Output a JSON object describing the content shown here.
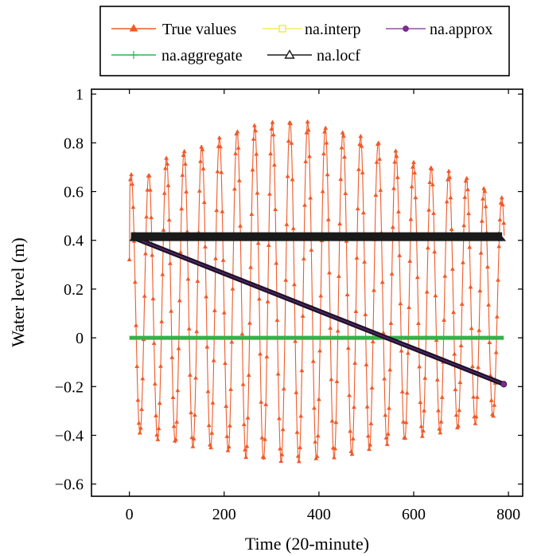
{
  "chart_data": {
    "type": "line",
    "title": "",
    "xlabel": "Time (20-minute)",
    "ylabel": "Water level (m)",
    "xlim": [
      -80,
      830
    ],
    "ylim": [
      -0.65,
      1.02
    ],
    "xticks": [
      0,
      200,
      400,
      600,
      800
    ],
    "xtick_labels": [
      "0",
      "200",
      "400",
      "600",
      "800"
    ],
    "yticks": [
      -0.6,
      -0.4,
      -0.2,
      0,
      0.2,
      0.4,
      0.6,
      0.8,
      1
    ],
    "ytick_labels": [
      "−0.6",
      "−0.4",
      "−0.2",
      "0",
      "0.2",
      "0.4",
      "0.6",
      "0.8",
      "1"
    ],
    "grid": false,
    "legend_position": "top",
    "true_values": {
      "n_points": 792,
      "period": 37.25,
      "phase_min_x": 22.3,
      "start_x": 0,
      "start_value": 0.32,
      "peaks": [
        [
          40,
          0.67
        ],
        [
          80,
          0.74
        ],
        [
          120,
          0.77
        ],
        [
          160,
          0.79
        ],
        [
          200,
          0.83
        ],
        [
          240,
          0.86
        ],
        [
          280,
          0.88
        ],
        [
          330,
          0.89
        ],
        [
          370,
          0.89
        ],
        [
          400,
          0.87
        ],
        [
          440,
          0.85
        ],
        [
          480,
          0.83
        ],
        [
          520,
          0.81
        ],
        [
          560,
          0.77
        ],
        [
          600,
          0.72
        ],
        [
          640,
          0.7
        ],
        [
          680,
          0.68
        ],
        [
          720,
          0.65
        ],
        [
          760,
          0.6
        ],
        [
          790,
          0.57
        ]
      ],
      "troughs": [
        [
          20,
          -0.39
        ],
        [
          60,
          -0.42
        ],
        [
          100,
          -0.43
        ],
        [
          140,
          -0.45
        ],
        [
          200,
          -0.46
        ],
        [
          240,
          -0.49
        ],
        [
          280,
          -0.5
        ],
        [
          330,
          -0.51
        ],
        [
          370,
          -0.51
        ],
        [
          400,
          -0.5
        ],
        [
          440,
          -0.49
        ],
        [
          480,
          -0.48
        ],
        [
          520,
          -0.45
        ],
        [
          560,
          -0.43
        ],
        [
          600,
          -0.41
        ],
        [
          640,
          -0.4
        ],
        [
          680,
          -0.38
        ],
        [
          720,
          -0.36
        ],
        [
          760,
          -0.33
        ],
        [
          790,
          -0.31
        ]
      ]
    },
    "series": [
      {
        "name": "True values",
        "color": "#f05a28",
        "marker": "triangle"
      },
      {
        "name": "na.interp",
        "color": "#f5e642",
        "marker": "square",
        "x": [
          10,
          790
        ],
        "values": [
          0.41,
          -0.19
        ]
      },
      {
        "name": "na.approx",
        "color": "#7b2d8e",
        "marker": "circle",
        "x": [
          10,
          790
        ],
        "values": [
          0.41,
          -0.19
        ]
      },
      {
        "name": "na.aggregate",
        "color": "#33b24a",
        "marker": "plus",
        "x": [
          0,
          790
        ],
        "values": [
          0,
          0
        ]
      },
      {
        "name": "na.locf",
        "color": "#1a1a1a",
        "marker": "triangle-open",
        "x": [
          0,
          790
        ],
        "values": [
          0.415,
          0.415
        ]
      }
    ]
  }
}
